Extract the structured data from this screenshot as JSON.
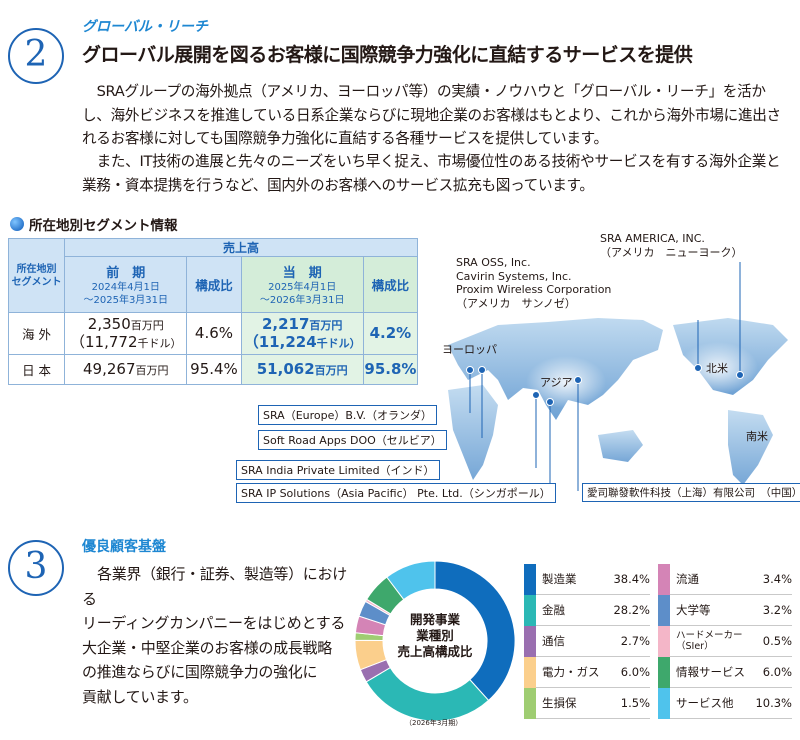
{
  "section2": {
    "number": "2",
    "kicker": "グローバル・リーチ",
    "heading": "グローバル展開を図るお客様に国際競争力強化に直結するサービスを提供",
    "para1": "SRAグループの海外拠点（アメリカ、ヨーロッパ等）の実績・ノウハウと「グローバル・リーチ」を活かし、海外ビジネスを推進している日系企業ならびに現地企業のお客様はもとより、これから海外市場に進出されるお客様に対しても国際競争力強化に直結する各種サービスを提供しています。",
    "para2": "また、IT技術の進展と先々のニーズをいち早く捉え、市場優位性のある技術やサービスを有する海外企業と業務・資本提携を行うなど、国内外のお客様へのサービス拡充も図っています。"
  },
  "segment_table": {
    "title": "所在地別セグメント情報",
    "row_header": "所在地別\nセグメント",
    "sales_header": "売上高",
    "prev_label": "前　期",
    "prev_period": "2024年4月1日\n～2025年3月31日",
    "ratio_label": "構成比",
    "curr_label": "当　期",
    "curr_period": "2025年4月1日\n～2026年3月31日",
    "rows": [
      {
        "name": "海 外",
        "prev": "2,350",
        "prev_unit": "百万円",
        "prev_usd": "（11,772",
        "prev_usd_unit": "千ドル）",
        "prev_ratio": "4.6%",
        "curr": "2,217",
        "curr_unit": "百万円",
        "curr_usd": "（11,224",
        "curr_usd_unit": "千ドル）",
        "curr_ratio": "4.2%"
      },
      {
        "name": "日 本",
        "prev": "49,267",
        "prev_unit": "百万円",
        "prev_ratio": "95.4%",
        "curr": "51,062",
        "curr_unit": "百万円",
        "curr_ratio": "95.8%"
      }
    ]
  },
  "map": {
    "regions": {
      "europe": "ヨーロッパ",
      "asia": "アジア",
      "north_america": "北米",
      "south_america": "南米"
    },
    "sra_america": [
      "SRA AMERICA, INC.",
      "（アメリカ　ニューヨーク）"
    ],
    "sra_oss": [
      "SRA OSS, Inc.",
      "Cavirin Systems, Inc.",
      "Proxim Wireless Corporation",
      "（アメリカ　サンノゼ）"
    ],
    "boxes": [
      "SRA（Europe）B.V.（オランダ）",
      "Soft Road Apps DOO（セルビア）",
      "SRA India Private Limited（インド）",
      "SRA IP Solutions（Asia Pacific） Pte. Ltd.（シンガポール）",
      "愛司聯發軟件科技（上海）有限公司　（中国）"
    ]
  },
  "section3": {
    "number": "3",
    "kicker": "優良顧客基盤",
    "lines": [
      "各業界（銀行・証券、製造等）における",
      "リーディングカンパニーをはじめとする",
      "大企業・中堅企業のお客様の成長戦略",
      "の推進ならびに国際競争力の強化に",
      "貢献しています。"
    ],
    "small_prefix": "（銀行・証券、製造等）"
  },
  "chart_data": {
    "type": "pie",
    "title": "開発事業\n業種別\n売上高構成比",
    "note": "（2026年3月期）",
    "categories": [
      "製造業",
      "金融",
      "通信",
      "電力・ガス",
      "生損保",
      "流通",
      "大学等",
      "ハードメーカー（SIer）",
      "情報サービス",
      "サービス他"
    ],
    "values": [
      38.4,
      28.2,
      2.7,
      6.0,
      1.5,
      3.4,
      3.2,
      0.5,
      6.0,
      10.3
    ],
    "labels": [
      "38.4%",
      "28.2%",
      "2.7%",
      "6.0%",
      "1.5%",
      "3.4%",
      "3.2%",
      "0.5%",
      "6.0%",
      "10.3%"
    ],
    "colors": [
      "#0f6dbd",
      "#2bb8b5",
      "#9a6fb0",
      "#fbcf8c",
      "#9fcd72",
      "#d484b6",
      "#5d8ec9",
      "#f4b6c8",
      "#3ea86c",
      "#4fc3ec"
    ]
  }
}
